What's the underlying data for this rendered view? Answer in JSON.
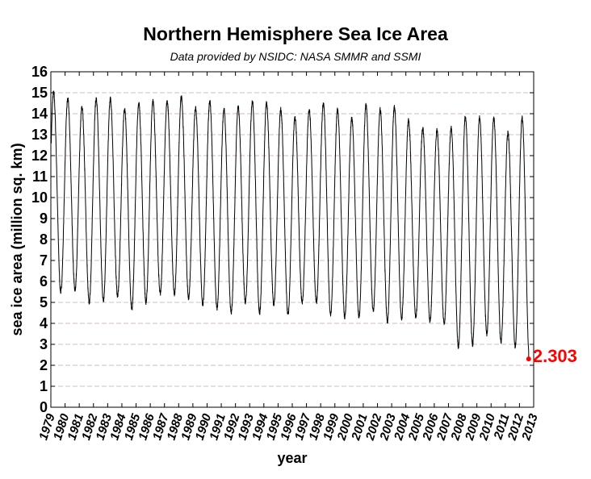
{
  "chart_data": {
    "type": "line",
    "title": "Northern Hemisphere Sea Ice Area",
    "subtitle": "Data provided by NSIDC: NASA SMMR and SSMI",
    "xlabel": "year",
    "ylabel": "sea ice area (million sq. km)",
    "xlim": [
      1979,
      2013
    ],
    "ylim": [
      0,
      16
    ],
    "yticks": [
      "0",
      "1",
      "2",
      "3",
      "4",
      "5",
      "6",
      "7",
      "8",
      "9",
      "10",
      "11",
      "12",
      "13",
      "14",
      "15",
      "16"
    ],
    "xticks": [
      "1979",
      "1980",
      "1981",
      "1982",
      "1983",
      "1984",
      "1985",
      "1986",
      "1987",
      "1988",
      "1989",
      "1990",
      "1991",
      "1992",
      "1993",
      "1994",
      "1995",
      "1996",
      "1997",
      "1998",
      "1999",
      "2000",
      "2001",
      "2002",
      "2003",
      "2004",
      "2005",
      "2006",
      "2007",
      "2008",
      "2009",
      "2010",
      "2011",
      "2012",
      "2013"
    ],
    "grid": true,
    "series_color": "#000000",
    "years": [
      1979,
      1980,
      1981,
      1982,
      1983,
      1984,
      1985,
      1986,
      1987,
      1988,
      1989,
      1990,
      1991,
      1992,
      1993,
      1994,
      1995,
      1996,
      1997,
      1998,
      1999,
      2000,
      2001,
      2002,
      2003,
      2004,
      2005,
      2006,
      2007,
      2008,
      2009,
      2010,
      2011,
      2012
    ],
    "annual_max": [
      15.0,
      14.7,
      14.3,
      14.7,
      14.7,
      14.2,
      14.5,
      14.6,
      14.6,
      14.8,
      14.3,
      14.6,
      14.2,
      14.3,
      14.6,
      14.5,
      14.2,
      13.8,
      14.2,
      14.5,
      14.2,
      13.8,
      14.4,
      14.2,
      14.3,
      13.7,
      13.3,
      13.2,
      13.3,
      13.9,
      13.8,
      13.8,
      13.1,
      13.8
    ],
    "annual_min": [
      5.5,
      5.6,
      5.0,
      5.1,
      5.3,
      4.7,
      5.0,
      5.4,
      5.4,
      5.2,
      4.9,
      4.7,
      4.5,
      5.0,
      4.5,
      4.9,
      4.4,
      5.0,
      5.0,
      4.4,
      4.3,
      4.3,
      4.6,
      4.1,
      4.2,
      4.3,
      4.1,
      4.0,
      2.9,
      3.0,
      3.5,
      3.1,
      2.9
    ],
    "last_point": {
      "year": 2012.65,
      "value": 2.303,
      "label": "2.303",
      "color": "#ff0000"
    }
  }
}
